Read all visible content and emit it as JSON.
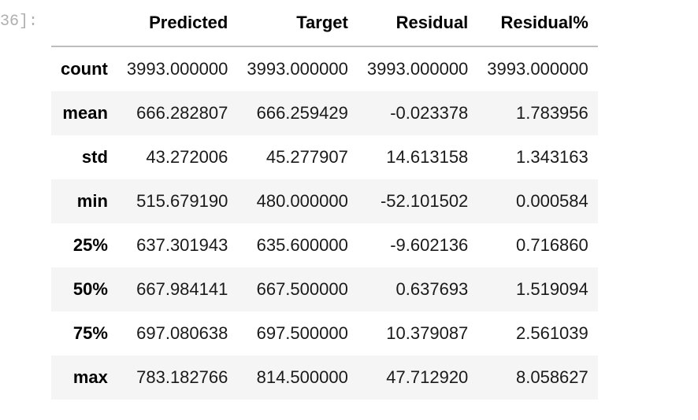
{
  "prompt": "36]:",
  "table": {
    "columns": [
      "",
      "Predicted",
      "Target",
      "Residual",
      "Residual%"
    ],
    "rows": [
      {
        "index": "count",
        "cells": [
          "3993.000000",
          "3993.000000",
          "3993.000000",
          "3993.000000"
        ]
      },
      {
        "index": "mean",
        "cells": [
          "666.282807",
          "666.259429",
          "-0.023378",
          "1.783956"
        ]
      },
      {
        "index": "std",
        "cells": [
          "43.272006",
          "45.277907",
          "14.613158",
          "1.343163"
        ]
      },
      {
        "index": "min",
        "cells": [
          "515.679190",
          "480.000000",
          "-52.101502",
          "0.000584"
        ]
      },
      {
        "index": "25%",
        "cells": [
          "637.301943",
          "635.600000",
          "-9.602136",
          "0.716860"
        ]
      },
      {
        "index": "50%",
        "cells": [
          "667.984141",
          "667.500000",
          "0.637693",
          "1.519094"
        ]
      },
      {
        "index": "75%",
        "cells": [
          "697.080638",
          "697.500000",
          "10.379087",
          "2.561039"
        ]
      },
      {
        "index": "max",
        "cells": [
          "783.182766",
          "814.500000",
          "47.712920",
          "8.058627"
        ]
      }
    ]
  }
}
